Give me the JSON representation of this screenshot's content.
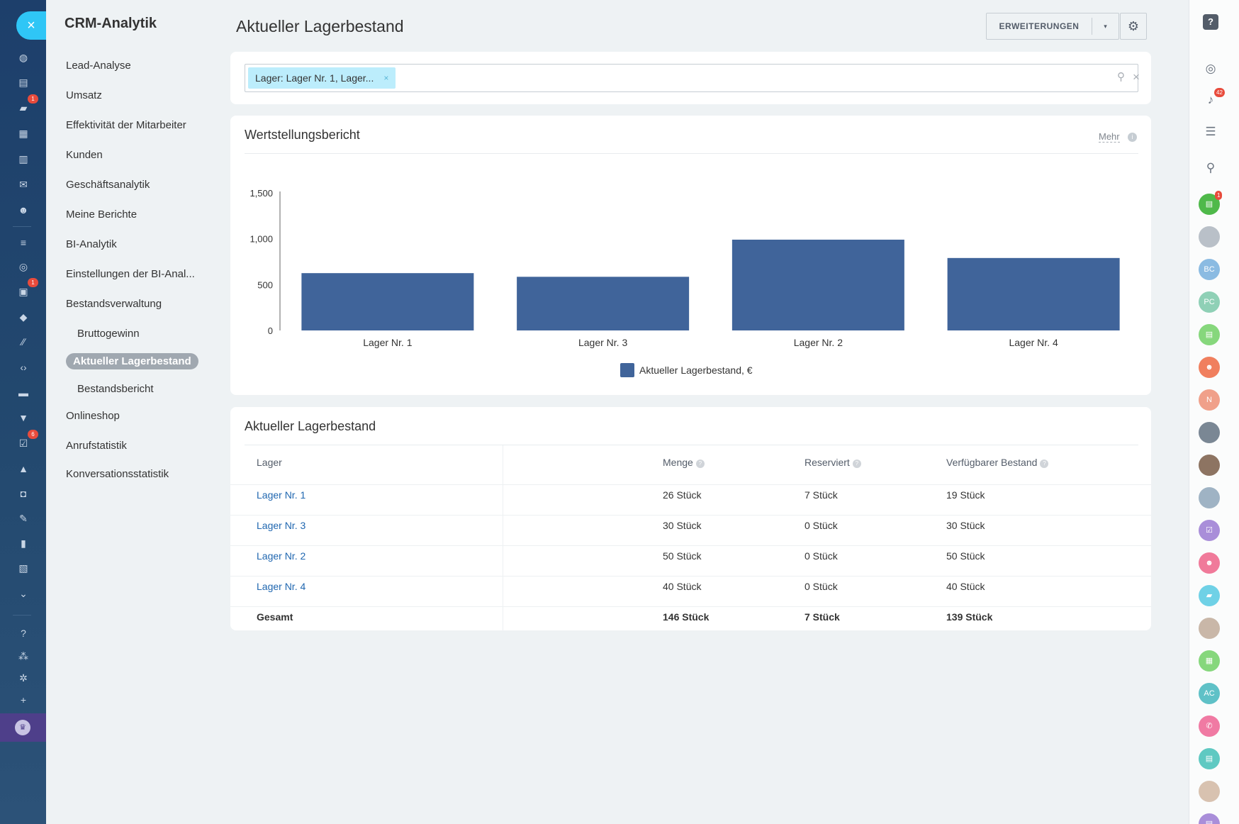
{
  "app": {
    "section_title": "CRM-Analytik",
    "close_glyph": "×"
  },
  "left_rail": {
    "icons": [
      {
        "name": "dashboard-icon",
        "glyph": "◍"
      },
      {
        "name": "feed-icon",
        "glyph": "▤"
      },
      {
        "name": "chat-icon",
        "glyph": "▰",
        "badge": "1"
      },
      {
        "name": "calendar-icon",
        "glyph": "▦"
      },
      {
        "name": "documents-icon",
        "glyph": "▥"
      },
      {
        "name": "mail-icon",
        "glyph": "✉"
      },
      {
        "name": "contacts-icon",
        "glyph": "☻"
      },
      {
        "name": "filter-icon",
        "glyph": "≡"
      },
      {
        "name": "target-icon",
        "glyph": "◎"
      },
      {
        "name": "crm-icon",
        "glyph": "▣",
        "badge": "1"
      },
      {
        "name": "inventory-icon",
        "glyph": "◆"
      },
      {
        "name": "marketing-icon",
        "glyph": "∕∕"
      },
      {
        "name": "code-icon",
        "glyph": "‹›"
      },
      {
        "name": "store-icon",
        "glyph": "▬"
      },
      {
        "name": "cart-icon",
        "glyph": "▼"
      },
      {
        "name": "tasks-icon",
        "glyph": "☑",
        "badge": "6"
      },
      {
        "name": "bank-icon",
        "glyph": "▲"
      },
      {
        "name": "robot-icon",
        "glyph": "◘"
      },
      {
        "name": "sign-icon",
        "glyph": "✎"
      },
      {
        "name": "analytics-icon",
        "glyph": "▮"
      },
      {
        "name": "forms-icon",
        "glyph": "▧"
      },
      {
        "name": "more-icon",
        "glyph": "⌄"
      },
      {
        "name": "help-icon",
        "glyph": "?"
      },
      {
        "name": "structure-icon",
        "glyph": "⁂"
      },
      {
        "name": "settings-icon",
        "glyph": "✲"
      },
      {
        "name": "add-icon",
        "glyph": "+"
      }
    ]
  },
  "menu": {
    "items": [
      {
        "label": "Lead-Analyse",
        "level": 0
      },
      {
        "label": "Umsatz",
        "level": 0
      },
      {
        "label": "Effektivität der Mitarbeiter",
        "level": 0
      },
      {
        "label": "Kunden",
        "level": 0
      },
      {
        "label": "Geschäftsanalytik",
        "level": 0
      },
      {
        "label": "Meine Berichte",
        "level": 0
      },
      {
        "label": "BI-Analytik",
        "level": 0
      },
      {
        "label": "Einstellungen der BI-Anal...",
        "level": 0
      },
      {
        "label": "Bestandsverwaltung",
        "level": 0
      },
      {
        "label": "Bruttogewinn",
        "level": 1
      },
      {
        "label": "Aktueller Lagerbestand",
        "level": 1,
        "active": true
      },
      {
        "label": "Bestandsbericht",
        "level": 1
      },
      {
        "label": "Onlineshop",
        "level": 0
      },
      {
        "label": "Anrufstatistik",
        "level": 0
      },
      {
        "label": "Konversationsstatistik",
        "level": 0
      }
    ]
  },
  "header": {
    "title": "Aktueller Lagerbestand",
    "extensions_label": "ERWEITERUNGEN",
    "caret": "▾",
    "gear": "⚙"
  },
  "filter": {
    "chip_label": "Lager: Lager Nr. 1, Lager...",
    "chip_remove": "×",
    "search_glyph": "⚲",
    "clear_glyph": "×"
  },
  "chart_panel": {
    "title": "Wertstellungsbericht",
    "more_label": "Mehr",
    "more_info": "i"
  },
  "chart_data": {
    "type": "bar",
    "title": "Wertstellungsbericht",
    "categories": [
      "Lager Nr. 1",
      "Lager Nr. 3",
      "Lager Nr. 2",
      "Lager Nr. 4"
    ],
    "series": [
      {
        "name": "Aktueller Lagerbestand, €",
        "color": "#40649a",
        "values": [
          625,
          585,
          990,
          790
        ]
      }
    ],
    "yticks": [
      "0",
      "500",
      "1,000",
      "1,500"
    ],
    "ylim": [
      0,
      1500
    ],
    "legend_position": "bottom-center",
    "grid": false
  },
  "table_panel": {
    "title": "Aktueller Lagerbestand",
    "info_glyph": "?",
    "columns": [
      "Lager",
      "Menge",
      "Reserviert",
      "Verfügbarer Bestand"
    ],
    "rows": [
      {
        "lager": "Lager Nr. 1",
        "menge": "26 Stück",
        "reserviert": "7 Stück",
        "verfuegbar": "19 Stück"
      },
      {
        "lager": "Lager Nr. 3",
        "menge": "30 Stück",
        "reserviert": "0 Stück",
        "verfuegbar": "30 Stück"
      },
      {
        "lager": "Lager Nr. 2",
        "menge": "50 Stück",
        "reserviert": "0 Stück",
        "verfuegbar": "50 Stück"
      },
      {
        "lager": "Lager Nr. 4",
        "menge": "40 Stück",
        "reserviert": "0 Stück",
        "verfuegbar": "40 Stück"
      }
    ],
    "total": {
      "lager": "Gesamt",
      "menge": "146 Stück",
      "reserviert": "7 Stück",
      "verfuegbar": "139 Stück"
    }
  },
  "right_sidebar": {
    "tools": [
      {
        "name": "help-icon",
        "glyph": "?"
      },
      {
        "name": "copilot-icon",
        "glyph": "◎"
      },
      {
        "name": "notifications-icon",
        "glyph": "♪",
        "badge": "42"
      },
      {
        "name": "messages-icon",
        "glyph": "☰"
      },
      {
        "name": "search-icon",
        "glyph": "⚲"
      }
    ],
    "avatars": [
      {
        "name": "avatar-contact-card",
        "label": "▤",
        "color": "#4fb94a",
        "badge": "1"
      },
      {
        "name": "avatar-user-1",
        "label": "",
        "color": "#b9c0c8"
      },
      {
        "name": "avatar-bc",
        "label": "BC",
        "color": "#8bbbe2"
      },
      {
        "name": "avatar-pc",
        "label": "PC",
        "color": "#8fd0b6"
      },
      {
        "name": "avatar-document",
        "label": "▤",
        "color": "#86d77c"
      },
      {
        "name": "avatar-group-1",
        "label": "☻",
        "color": "#f07f5e"
      },
      {
        "name": "avatar-n",
        "label": "N",
        "color": "#f0a08a"
      },
      {
        "name": "avatar-user-2",
        "label": "",
        "color": "#7a8794"
      },
      {
        "name": "avatar-user-3",
        "label": "",
        "color": "#8d7462"
      },
      {
        "name": "avatar-user-4",
        "label": "",
        "color": "#9fb3c4"
      },
      {
        "name": "avatar-tasks",
        "label": "☑",
        "color": "#a98ed9"
      },
      {
        "name": "avatar-group-2",
        "label": "☻",
        "color": "#f07a9a"
      },
      {
        "name": "avatar-chat",
        "label": "▰",
        "color": "#6fd1e6"
      },
      {
        "name": "avatar-user-5",
        "label": "",
        "color": "#c9b7a8"
      },
      {
        "name": "avatar-calendar",
        "label": "▦",
        "color": "#86d77c"
      },
      {
        "name": "avatar-ac",
        "label": "AC",
        "color": "#5fc1c7"
      },
      {
        "name": "avatar-phone",
        "label": "✆",
        "color": "#f07aa3"
      },
      {
        "name": "avatar-contact-card-2",
        "label": "▤",
        "color": "#5fc9c2"
      },
      {
        "name": "avatar-user-6",
        "label": "",
        "color": "#d8c2b0"
      },
      {
        "name": "avatar-more",
        "label": "▤",
        "color": "#a98ed9"
      }
    ]
  }
}
